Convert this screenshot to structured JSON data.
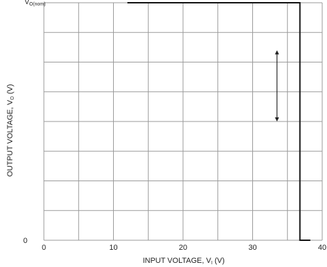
{
  "chart_data": {
    "type": "line",
    "title": "",
    "xlabel": "INPUT VOLTAGE, V",
    "xlabel_sub": "I",
    "xlabel_unit": " (V)",
    "ylabel": "OUTPUT VOLTAGE, V",
    "ylabel_sub": "O",
    "ylabel_unit": " (V)",
    "xlim": [
      0,
      40
    ],
    "ylim": [
      0,
      6
    ],
    "x_ticks": [
      0,
      10,
      20,
      30,
      40
    ],
    "x_tick_labels": [
      "0",
      "10",
      "20",
      "30",
      "40"
    ],
    "y_tick_labels": [
      "0"
    ],
    "grid": true,
    "reference_line": {
      "value": 6,
      "label_main": "V",
      "label_sub": "O(nom)"
    },
    "series": [
      {
        "x": [
          12,
          36.8,
          36.8,
          37.5,
          38.3
        ],
        "y": [
          6,
          6,
          0,
          0,
          0
        ]
      }
    ],
    "annotations": [
      {
        "type": "double-arrow",
        "x": 33.5,
        "y_from": 4.8,
        "y_to": 3.0
      }
    ],
    "colors": {
      "grid": "#9a9a9a",
      "line": "#111111"
    }
  }
}
